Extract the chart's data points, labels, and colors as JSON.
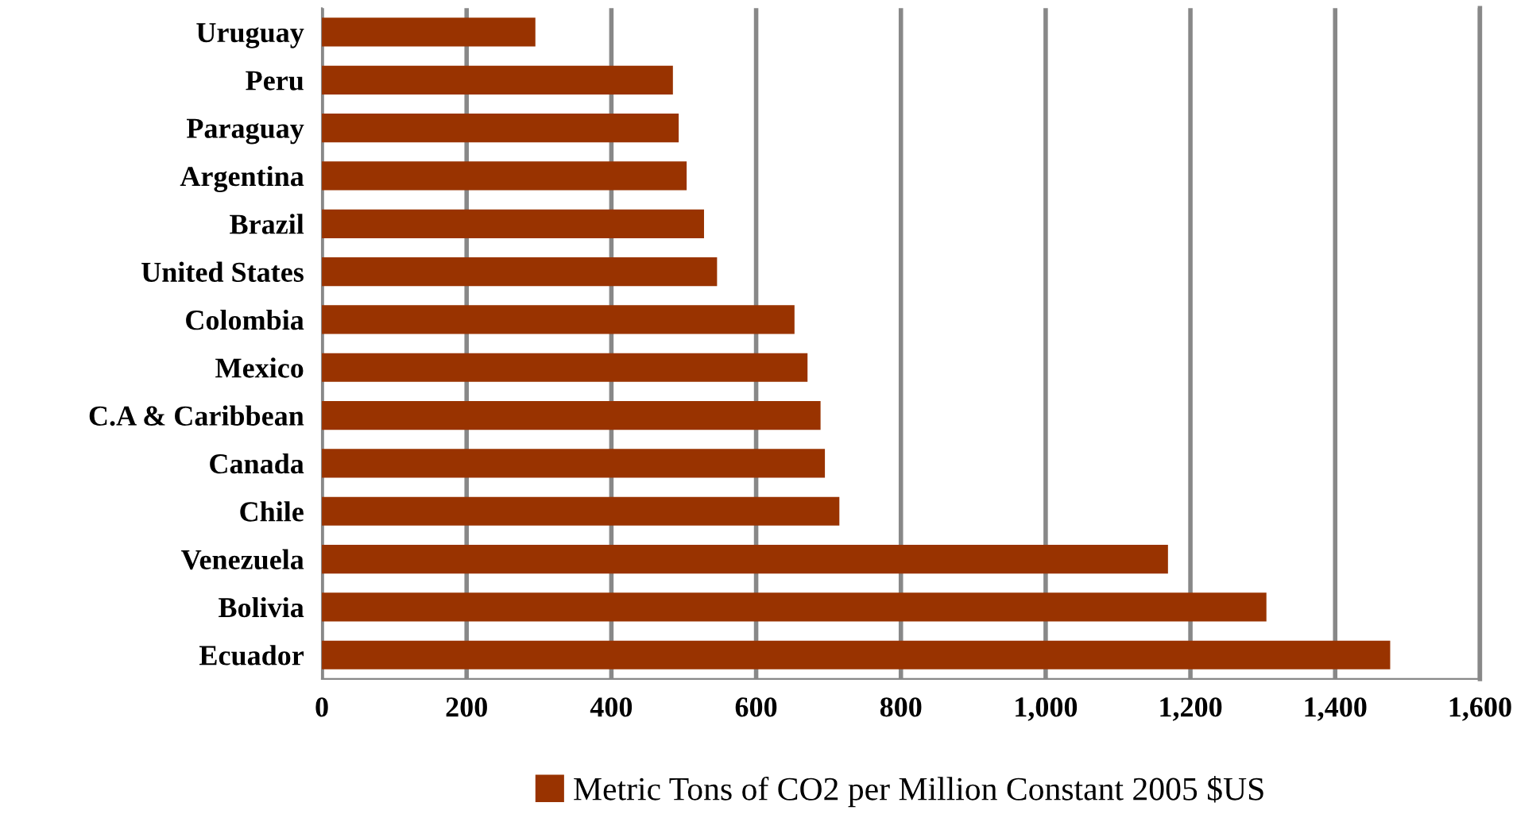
{
  "chart_data": {
    "type": "bar",
    "orientation": "horizontal",
    "categories": [
      "Uruguay",
      "Peru",
      "Paraguay",
      "Argentina",
      "Brazil",
      "United States",
      "Colombia",
      "Mexico",
      "C.A & Caribbean",
      "Canada",
      "Chile",
      "Venezuela",
      "Bolivia",
      "Ecuador"
    ],
    "series": [
      {
        "name": "Metric Tons of CO2 per Million Constant 2005 $US",
        "color": "#993300",
        "values": [
          295,
          485,
          493,
          504,
          528,
          546,
          653,
          671,
          689,
          695,
          715,
          1169,
          1305,
          1476
        ]
      }
    ],
    "xlim": [
      0,
      1600
    ],
    "xticks": [
      0,
      {
        "value": 200,
        "label": "200"
      },
      {
        "value": 400,
        "label": "400"
      },
      {
        "value": 600,
        "label": "600"
      },
      {
        "value": 800,
        "label": "800"
      },
      {
        "value": 1000,
        "label": "1,000"
      },
      {
        "value": 1200,
        "label": "1,200"
      },
      {
        "value": 1400,
        "label": "1,400"
      },
      {
        "value": 1600,
        "label": "1,600"
      }
    ],
    "grid": "x",
    "legend": "bottom"
  }
}
